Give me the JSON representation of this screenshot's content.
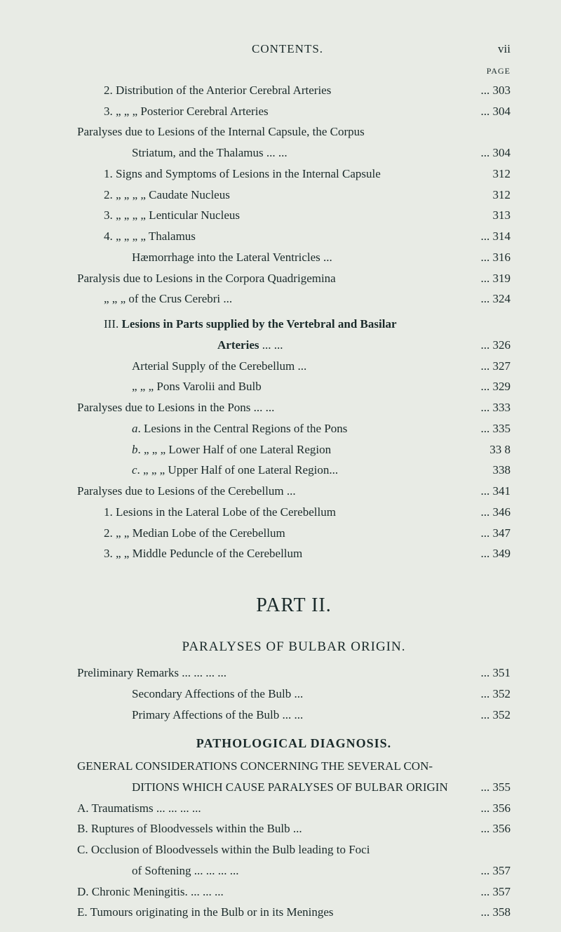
{
  "header": {
    "center": "CONTENTS.",
    "right": "vii",
    "pageLabel": "PAGE"
  },
  "block1": [
    {
      "indent": 1,
      "text": "2. Distribution of the Anterior Cerebral Arteries",
      "page": "... 303"
    },
    {
      "indent": 1,
      "text": "3.       „       „   „  Posterior Cerebral Arteries",
      "page": "... 304"
    },
    {
      "indent": 0,
      "text": "Paralyses due to Lesions of the Internal Capsule, the Corpus",
      "page": ""
    },
    {
      "indent": 2,
      "text": "Striatum, and the Thalamus       ...          ...",
      "page": "... 304"
    },
    {
      "indent": 1,
      "text": "1. Signs and Symptoms of Lesions in the Internal Capsule",
      "page": "312"
    },
    {
      "indent": 1,
      "text": "2.       „          „           „           „      Caudate Nucleus",
      "page": "312"
    },
    {
      "indent": 1,
      "text": "3.       „          „           „           „      Lenticular Nucleus",
      "page": "313"
    },
    {
      "indent": 1,
      "text": "4.       „          „           „           „      Thalamus",
      "page": "... 314"
    },
    {
      "indent": 2,
      "text": "Hæmorrhage into the Lateral Ventricles       ...",
      "page": "... 316"
    },
    {
      "indent": 0,
      "text": "Paralysis due to Lesions in the Corpora Quadrigemina",
      "page": "... 319"
    },
    {
      "indent": 1,
      "text": "„        „         „     of the Crus Cerebri             ...",
      "page": "... 324"
    }
  ],
  "heading": {
    "line1_prefix": "III. ",
    "line1_bold": "Lesions in Parts supplied by the Vertebral and Basilar",
    "line2_bold": "Arteries",
    "line2_dots": "      ...          ...",
    "page": "... 326"
  },
  "block2": [
    {
      "indent": 2,
      "text": "Arterial Supply of the Cerebellum               ...",
      "page": "... 327"
    },
    {
      "indent": 2,
      "text": "   „        „        „     Pons Varolii and Bulb",
      "page": "... 329"
    },
    {
      "indent": 0,
      "text": "Paralyses due to Lesions in the Pons        ...          ...",
      "page": "... 333"
    },
    {
      "indent": 2,
      "text": "a. Lesions in the Central Regions of the Pons",
      "italic": true,
      "page": "... 335"
    },
    {
      "indent": 2,
      "text": "b.   „     „    „  Lower Half of one Lateral Region",
      "italic": true,
      "page": "33 8"
    },
    {
      "indent": 2,
      "text": "c.   „     „    „  Upper Half of one Lateral Region...",
      "italic": true,
      "page": "338"
    },
    {
      "indent": 0,
      "text": "Paralyses due to Lesions of the Cerebellum           ...",
      "page": "... 341"
    },
    {
      "indent": 1,
      "text": "1. Lesions in the Lateral Lobe of the Cerebellum",
      "page": "... 346"
    },
    {
      "indent": 1,
      "text": "2.    „      „   Median Lobe of the Cerebellum",
      "page": "... 347"
    },
    {
      "indent": 1,
      "text": "3.    „      „   Middle Peduncle of the Cerebellum",
      "page": "... 349"
    }
  ],
  "part2": {
    "title": "PART II.",
    "section": "PARALYSES OF BULBAR ORIGIN."
  },
  "block3": [
    {
      "indent": 0,
      "text": "Preliminary Remarks ...          ...          ...          ...",
      "page": "... 351"
    },
    {
      "indent": 2,
      "text": "Secondary Affections of the Bulb            ...",
      "page": "... 352"
    },
    {
      "indent": 2,
      "text": "Primary Affections of the Bulb ...          ...",
      "page": "... 352"
    }
  ],
  "patho": "PATHOLOGICAL DIAGNOSIS.",
  "block4": [
    {
      "indent": 0,
      "text": "GENERAL CONSIDERATIONS CONCERNING THE SEVERAL CON-",
      "page": ""
    },
    {
      "indent": 2,
      "text": "DITIONS WHICH CAUSE PARALYSES OF BULBAR ORIGIN",
      "page": "... 355"
    },
    {
      "indent": 0,
      "text": "A. Traumatisms           ...          ...          ...          ...",
      "page": "... 356"
    },
    {
      "indent": 0,
      "text": "B. Ruptures of Bloodvessels within the Bulb          ...",
      "page": "... 356"
    },
    {
      "indent": 0,
      "text": "C. Occlusion of Bloodvessels within the Bulb leading to Foci",
      "page": ""
    },
    {
      "indent": 2,
      "text": "of Softening        ...          ...          ...          ...",
      "page": "... 357"
    },
    {
      "indent": 0,
      "text": "D. Chronic Meningitis.           ...          ...          ...",
      "page": "... 357"
    },
    {
      "indent": 0,
      "text": "E. Tumours originating in the Bulb or in its Meninges",
      "page": "... 358"
    }
  ]
}
